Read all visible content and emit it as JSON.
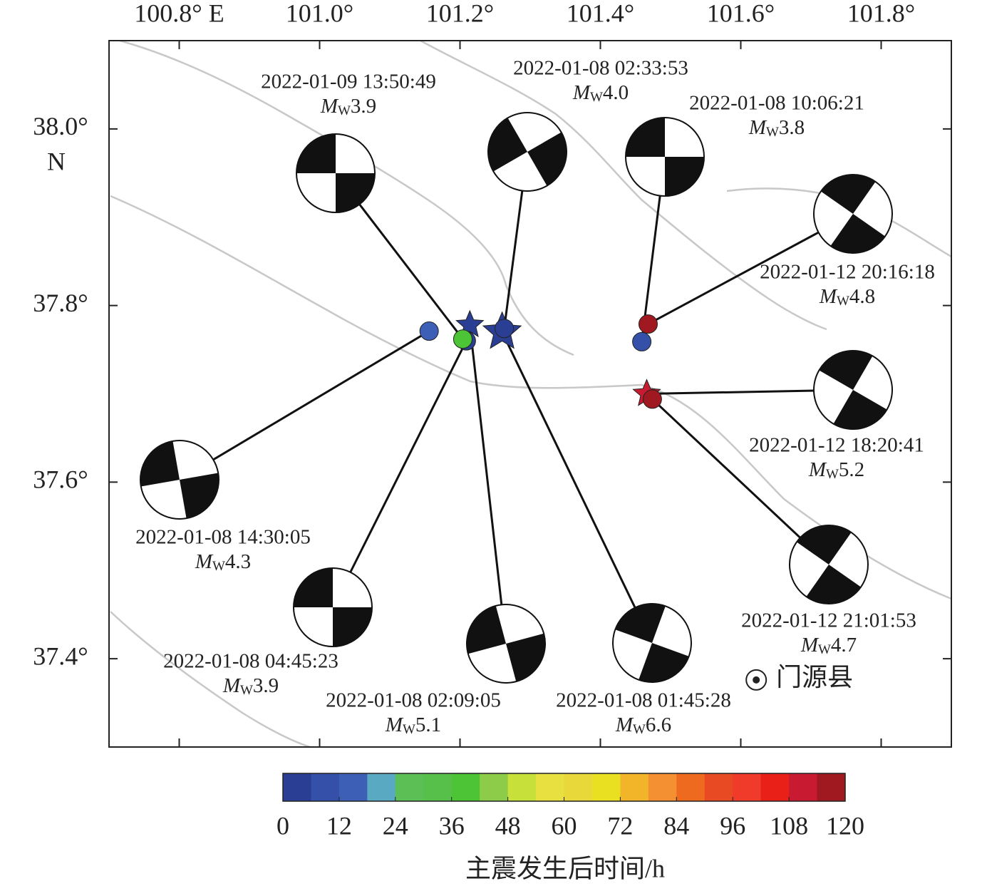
{
  "map": {
    "xlim": [
      100.7,
      101.9
    ],
    "ylim": [
      37.3,
      38.1
    ],
    "xticks": [
      {
        "value": 100.8,
        "label": "100.8° E"
      },
      {
        "value": 101.0,
        "label": "101.0°"
      },
      {
        "value": 101.2,
        "label": "101.2°"
      },
      {
        "value": 101.4,
        "label": "101.4°"
      },
      {
        "value": 101.6,
        "label": "101.6°"
      },
      {
        "value": 101.8,
        "label": "101.8°"
      }
    ],
    "yticks": [
      {
        "value": 38.0,
        "label": "38.0°"
      },
      {
        "value": 37.8,
        "label": "37.8°"
      },
      {
        "value": 37.6,
        "label": "37.6°"
      },
      {
        "value": 37.4,
        "label": "37.4°"
      }
    ],
    "y_hemisphere": "N",
    "magnitude_symbol": "M",
    "magnitude_subscript": "W",
    "events": [
      {
        "time": "2022-01-08 01:45:28",
        "magnitude": "6.6",
        "lon": 101.26,
        "lat": 37.77,
        "hours": 0
      },
      {
        "time": "2022-01-08 02:09:05",
        "magnitude": "5.1",
        "lon": 101.214,
        "lat": 37.778,
        "hours": 0.39
      },
      {
        "time": "2022-01-08 02:33:53",
        "magnitude": "4.0",
        "lon": 101.263,
        "lat": 37.774,
        "hours": 0.81
      },
      {
        "time": "2022-01-08 04:45:23",
        "magnitude": "3.9",
        "lon": 101.209,
        "lat": 37.76,
        "hours": 3.0
      },
      {
        "time": "2022-01-08 10:06:21",
        "magnitude": "3.8",
        "lon": 101.459,
        "lat": 37.759,
        "hours": 8.35
      },
      {
        "time": "2022-01-08 14:30:05",
        "magnitude": "4.3",
        "lon": 101.156,
        "lat": 37.771,
        "hours": 12.74
      },
      {
        "time": "2022-01-09 13:50:49",
        "magnitude": "3.9",
        "lon": 101.204,
        "lat": 37.762,
        "hours": 36.09
      },
      {
        "time": "2022-01-12 18:20:41",
        "magnitude": "5.2",
        "lon": 101.466,
        "lat": 37.7,
        "hours": 112.59
      },
      {
        "time": "2022-01-12 20:16:18",
        "magnitude": "4.8",
        "lon": 101.468,
        "lat": 37.779,
        "hours": 114.51
      },
      {
        "time": "2022-01-12 21:01:53",
        "magnitude": "4.7",
        "lon": 101.474,
        "lat": 37.694,
        "hours": 115.27
      }
    ],
    "places": [
      {
        "name": "门源县",
        "lon": 101.622,
        "lat": 37.376
      }
    ]
  },
  "colorbar": {
    "title": "主震发生后时间/h",
    "clim": [
      0,
      120
    ],
    "ticks": [
      0,
      12,
      24,
      36,
      48,
      60,
      72,
      84,
      96,
      108,
      120
    ],
    "colors": [
      "#2a3f94",
      "#3450a8",
      "#3d5fb5",
      "#5aa9c2",
      "#5cbf55",
      "#56c04a",
      "#4cc435",
      "#8ccc48",
      "#c8e03a",
      "#e8e040",
      "#e8d83a",
      "#e8e020",
      "#f2b52a",
      "#f59032",
      "#ee6a1f",
      "#e84a24",
      "#f03a2a",
      "#e82018",
      "#c81a30",
      "#a01820"
    ]
  }
}
